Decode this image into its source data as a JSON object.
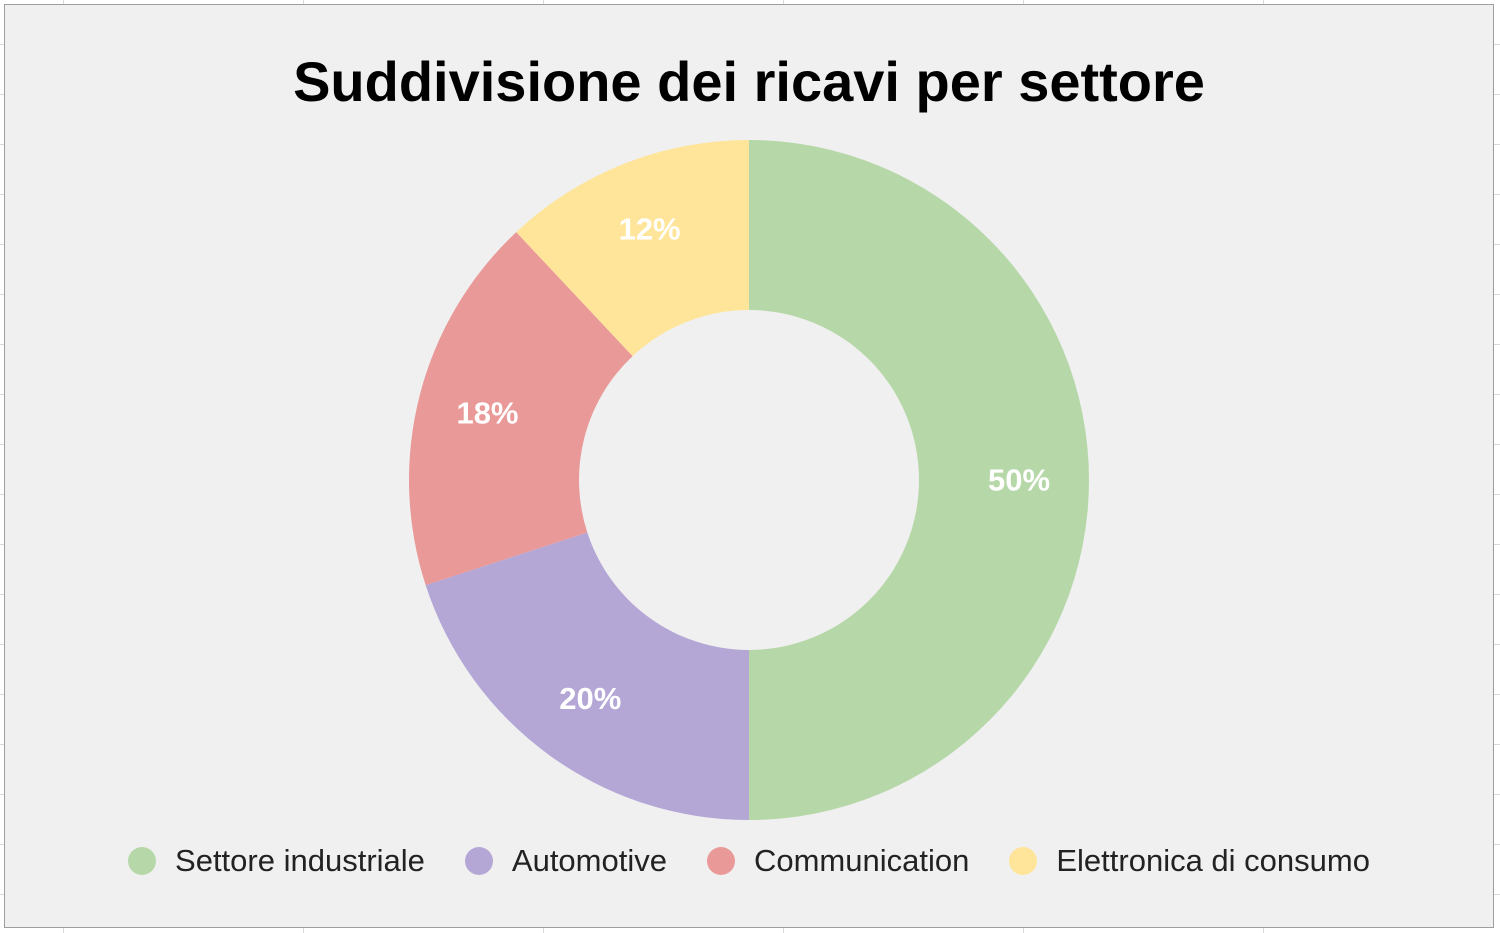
{
  "chart_data": {
    "type": "pie",
    "donut": true,
    "title": "Suddivisione dei ricavi per settore",
    "categories": [
      "Settore industriale",
      "Automotive",
      "Communication",
      "Elettronica di consumo"
    ],
    "values": [
      50,
      20,
      18,
      12
    ],
    "labels": [
      "50%",
      "20%",
      "18%",
      "12%"
    ],
    "colors": [
      "#b6d8a8",
      "#b4a7d6",
      "#ea9999",
      "#ffe599"
    ],
    "label_color": "#ffffff",
    "legend_position": "bottom"
  }
}
